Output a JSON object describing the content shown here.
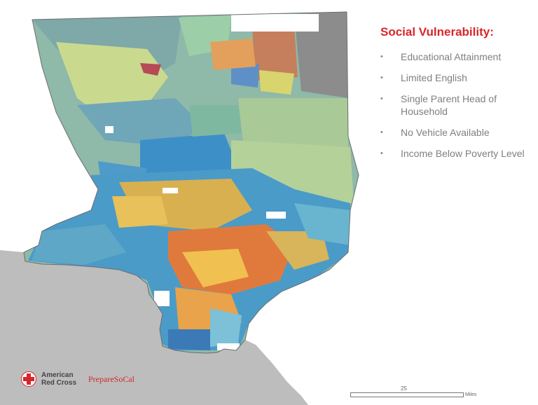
{
  "panel": {
    "title": "Social Vulnerability:",
    "items": [
      "Educational Attainment",
      "Limited English",
      "Single Parent Head of Household",
      "No Vehicle Available",
      "Income Below Poverty Level"
    ],
    "bullet": "•"
  },
  "logo": {
    "org_line1": "American",
    "org_line2": "Red Cross",
    "program": "PrepareSoCal"
  },
  "scale": {
    "tick_label": "25",
    "unit": "Miles"
  },
  "colors": {
    "title": "#d7262b",
    "ocean": "#bdbdbd",
    "county_base": "#8fb9a8",
    "urban_low": "#3d8fc7",
    "urban_high": "#e07a3c"
  }
}
